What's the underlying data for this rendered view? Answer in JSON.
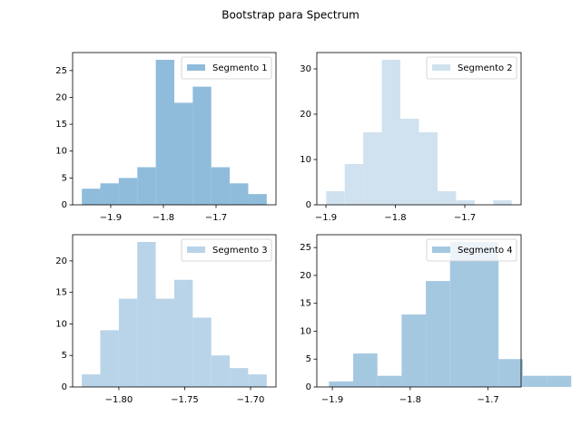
{
  "title": "Bootstrap para Spectrum",
  "chart_data": [
    {
      "type": "histogram",
      "legend": "upper right",
      "series": [
        {
          "name": "Segmento 1",
          "color": "#8fbcdb",
          "bins": [
            -1.9548,
            -1.9197,
            -1.8846,
            -1.8495,
            -1.8144,
            -1.7793,
            -1.7442,
            -1.7091,
            -1.674,
            -1.6389,
            -1.6038
          ],
          "values": [
            3,
            4,
            5,
            7,
            27,
            19,
            22,
            7,
            4,
            2
          ]
        }
      ],
      "xlim": [
        -1.9723,
        -1.5863
      ],
      "ylim": [
        0,
        28.35
      ],
      "xticks": [
        {
          "value": -1.9,
          "label": "−1.9"
        },
        {
          "value": -1.8,
          "label": "−1.8"
        },
        {
          "value": -1.7,
          "label": "−1.7"
        }
      ],
      "yticks": [
        0,
        5,
        10,
        15,
        20,
        25
      ]
    },
    {
      "type": "histogram",
      "legend": "upper right",
      "series": [
        {
          "name": "Segmento 2",
          "color": "#d0e2ef",
          "bins": [
            -1.8997,
            -1.873,
            -1.8463,
            -1.8195,
            -1.7928,
            -1.7661,
            -1.7393,
            -1.7126,
            -1.6859,
            -1.6591,
            -1.6324
          ],
          "values": [
            3,
            9,
            16,
            32,
            19,
            16,
            3,
            1,
            0,
            1
          ]
        }
      ],
      "xlim": [
        -1.9131,
        -1.619
      ],
      "ylim": [
        0,
        33.6
      ],
      "xticks": [
        {
          "value": -1.9,
          "label": "−1.9"
        },
        {
          "value": -1.8,
          "label": "−1.8"
        },
        {
          "value": -1.7,
          "label": "−1.7"
        }
      ],
      "yticks": [
        0,
        10,
        20,
        30
      ]
    },
    {
      "type": "histogram",
      "legend": "upper right",
      "series": [
        {
          "name": "Segmento 3",
          "color": "#b9d4e8",
          "bins": [
            -1.8281,
            -1.8141,
            -1.8,
            -1.786,
            -1.772,
            -1.7579,
            -1.7439,
            -1.7298,
            -1.7158,
            -1.7018,
            -1.6877
          ],
          "values": [
            2,
            9,
            14,
            23,
            14,
            17,
            11,
            5,
            3,
            2
          ]
        }
      ],
      "xlim": [
        -1.8351,
        -1.6807
      ],
      "ylim": [
        0,
        24.15
      ],
      "xticks": [
        {
          "value": -1.8,
          "label": "−1.80"
        },
        {
          "value": -1.75,
          "label": "−1.75"
        },
        {
          "value": -1.7,
          "label": "−1.70"
        }
      ],
      "yticks": [
        0,
        5,
        10,
        15,
        20
      ]
    },
    {
      "type": "histogram",
      "legend": "upper right",
      "series": [
        {
          "name": "Segmento 4",
          "color": "#a5c8e1",
          "bins": [
            -1.9043,
            -1.8732,
            -1.8421,
            -1.811,
            -1.7799,
            -1.7488,
            -1.7176,
            -1.6865,
            -1.6554,
            -1.6243,
            -1.5932
          ],
          "values": [
            1,
            6,
            2,
            13,
            19,
            26,
            26,
            5,
            2,
            2
          ]
        }
      ],
      "xlim": [
        -1.9199,
        -1.6576
      ],
      "ylim": [
        0,
        27.3
      ],
      "xticks": [
        {
          "value": -1.9,
          "label": "−1.9"
        },
        {
          "value": -1.8,
          "label": "−1.8"
        },
        {
          "value": -1.7,
          "label": "−1.7"
        }
      ],
      "yticks": [
        0,
        5,
        10,
        15,
        20,
        25
      ]
    }
  ]
}
